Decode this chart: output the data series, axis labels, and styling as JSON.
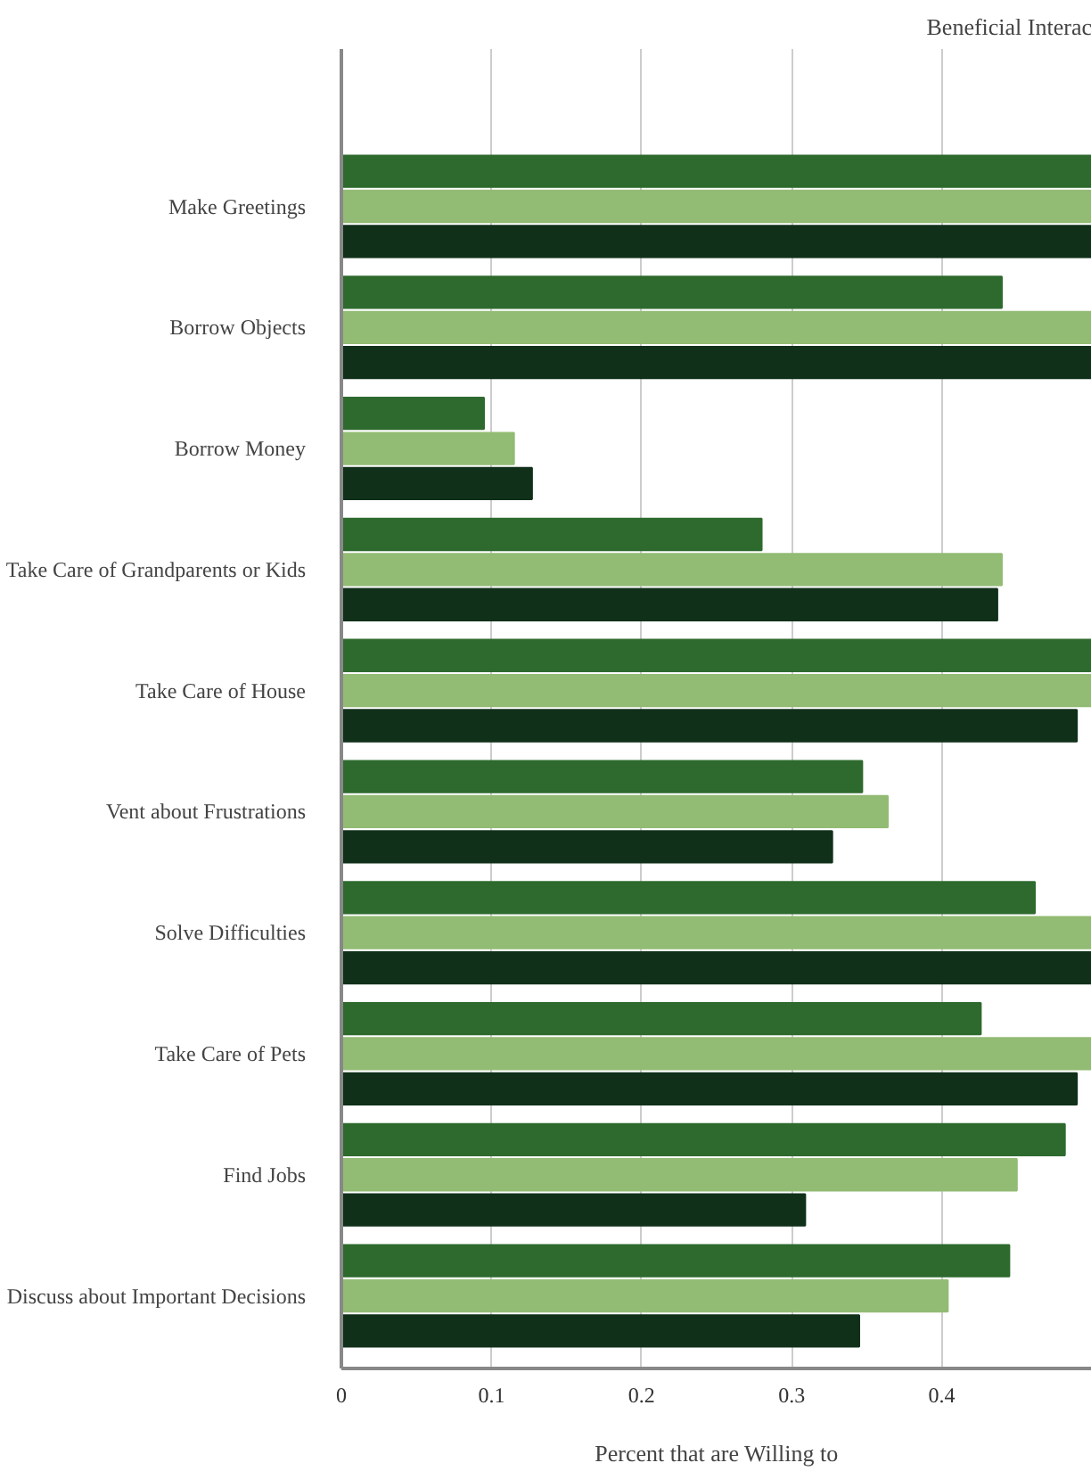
{
  "chart_data": {
    "type": "bar",
    "orientation": "horizontal",
    "title": "Beneficial Interac",
    "xlabel": "Percent that are Willing to",
    "categories": [
      "Make Greetings",
      "Borrow Objects",
      "Borrow Money",
      "Take Care of Grandparents or Kids",
      "Take Care of House",
      "Vent about Frustrations",
      "Solve Difficulties",
      "Take Care of Pets",
      "Find Jobs",
      "Discuss about Important Decisions"
    ],
    "series": [
      {
        "color": "#2e6a2e",
        "values": [
          0.5,
          0.44,
          0.095,
          0.28,
          0.5,
          0.347,
          0.462,
          0.426,
          0.482,
          0.445
        ]
      },
      {
        "color": "#92bb74",
        "values": [
          0.5,
          0.5,
          0.115,
          0.44,
          0.5,
          0.364,
          0.5,
          0.5,
          0.45,
          0.404
        ]
      },
      {
        "color": "#10301a",
        "values": [
          0.5,
          0.5,
          0.127,
          0.437,
          0.49,
          0.327,
          0.5,
          0.49,
          0.309,
          0.345
        ]
      }
    ],
    "xlim": [
      0,
      0.5
    ],
    "xticks": [
      0,
      0.1,
      0.2,
      0.3,
      0.4
    ],
    "grid": "x"
  }
}
